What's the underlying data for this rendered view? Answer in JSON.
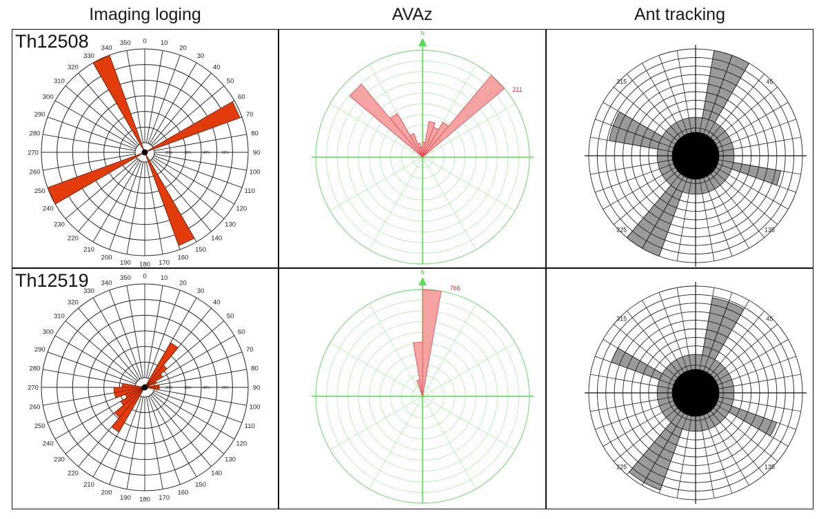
{
  "columns": [
    "Imaging loging",
    "AVAz",
    "Ant tracking"
  ],
  "wells": [
    "Th12508",
    "Th12519"
  ],
  "colors": {
    "imaging_fill": "#e23b0c",
    "avaz_fill": "#f5a3a3",
    "avaz_stroke": "#e0505a",
    "avaz_grid": "#b6ecb6",
    "avaz_axis": "#55dd55",
    "ant_fill": "#9a9a9a"
  },
  "imaging_axis": {
    "angle_labels": [
      "0",
      "10",
      "20",
      "30",
      "40",
      "50",
      "60",
      "70",
      "80",
      "90",
      "100",
      "110",
      "120",
      "130",
      "140",
      "150",
      "160",
      "170",
      "180",
      "190",
      "200",
      "210",
      "220",
      "230",
      "240",
      "250",
      "260",
      "270",
      "280",
      "290",
      "300",
      "310",
      "320",
      "330",
      "340",
      "350"
    ],
    "radial_labels": [
      "20%",
      "30%",
      "40%",
      "50%"
    ]
  },
  "avaz_axis": {
    "north_label": "N"
  },
  "ant_axis": {
    "angle_labels": [
      "315",
      "45",
      "135",
      "225"
    ]
  },
  "chart_data": [
    {
      "type": "rose",
      "panel": "Imaging loging",
      "well": "Th12508",
      "bin_width_deg": 10,
      "bins": [
        {
          "start": 330,
          "value": 1.0
        },
        {
          "start": 60,
          "value": 0.98
        },
        {
          "start": 240,
          "value": 1.0
        },
        {
          "start": 150,
          "value": 0.96
        }
      ]
    },
    {
      "type": "rose",
      "panel": "Imaging loging",
      "well": "Th12519",
      "bin_width_deg": 10,
      "bins": [
        {
          "start": 30,
          "value": 0.5
        },
        {
          "start": 40,
          "value": 0.28
        },
        {
          "start": 50,
          "value": 0.2
        },
        {
          "start": 60,
          "value": 0.12
        },
        {
          "start": 80,
          "value": 0.14
        },
        {
          "start": 90,
          "value": 0.14
        },
        {
          "start": 210,
          "value": 0.5
        },
        {
          "start": 220,
          "value": 0.38
        },
        {
          "start": 230,
          "value": 0.27
        },
        {
          "start": 240,
          "value": 0.2
        },
        {
          "start": 250,
          "value": 0.3
        },
        {
          "start": 260,
          "value": 0.3
        },
        {
          "start": 270,
          "value": 0.22
        }
      ]
    },
    {
      "type": "rose",
      "panel": "AVAz",
      "well": "Th12508",
      "max_label": "211",
      "max_value": 211,
      "bin_width_deg": 10,
      "bins": [
        {
          "start": 0,
          "value": 30
        },
        {
          "start": 10,
          "value": 72
        },
        {
          "start": 20,
          "value": 63
        },
        {
          "start": 30,
          "value": 80
        },
        {
          "start": 40,
          "value": 211
        },
        {
          "start": 310,
          "value": 188
        },
        {
          "start": 320,
          "value": 100
        },
        {
          "start": 330,
          "value": 50
        },
        {
          "start": 340,
          "value": 28
        },
        {
          "start": 350,
          "value": 20
        }
      ]
    },
    {
      "type": "rose",
      "panel": "AVAz",
      "well": "Th12519",
      "max_label": "766",
      "max_value": 766,
      "bin_width_deg": 10,
      "bins": [
        {
          "start": 0,
          "value": 766
        },
        {
          "start": 350,
          "value": 390
        },
        {
          "start": 340,
          "value": 120
        }
      ]
    },
    {
      "type": "rose",
      "panel": "Ant tracking",
      "well": "Th12508",
      "bin_width_deg": 10,
      "bins": [
        {
          "start": 10,
          "value": 1.0
        },
        {
          "start": 20,
          "value": 1.0
        },
        {
          "start": 100,
          "value": 0.7
        },
        {
          "start": 200,
          "value": 1.0
        },
        {
          "start": 210,
          "value": 1.0
        },
        {
          "start": 280,
          "value": 0.72
        },
        {
          "start": 290,
          "value": 0.72
        }
      ]
    },
    {
      "type": "rose",
      "panel": "Ant tracking",
      "well": "Th12519",
      "bin_width_deg": 10,
      "bins": [
        {
          "start": 10,
          "value": 0.85
        },
        {
          "start": 20,
          "value": 0.85
        },
        {
          "start": 110,
          "value": 0.7
        },
        {
          "start": 200,
          "value": 0.95
        },
        {
          "start": 210,
          "value": 0.95
        },
        {
          "start": 290,
          "value": 0.75
        }
      ]
    }
  ]
}
